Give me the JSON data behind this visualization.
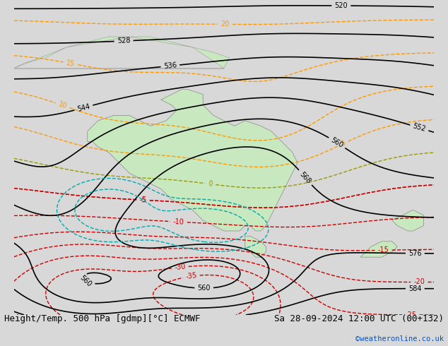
{
  "title_left": "Height/Temp. 500 hPa [gdmp][°C] ECMWF",
  "title_right": "Sa 28-09-2024 12:00 UTC (00+132)",
  "credit": "©weatheronline.co.uk",
  "background_color": "#d8d8d8",
  "map_bg_color": "#e8e8e8",
  "land_color": "#c8e8c0",
  "sea_color": "#d8d8d8",
  "z500_color": "#000000",
  "temp_neg_color": "#cc0000",
  "temp_pos_color": "#ff9900",
  "temp_zero_color": "#999900",
  "rain_color": "#00aaaa",
  "font_size_title": 9,
  "font_size_labels": 7.5
}
